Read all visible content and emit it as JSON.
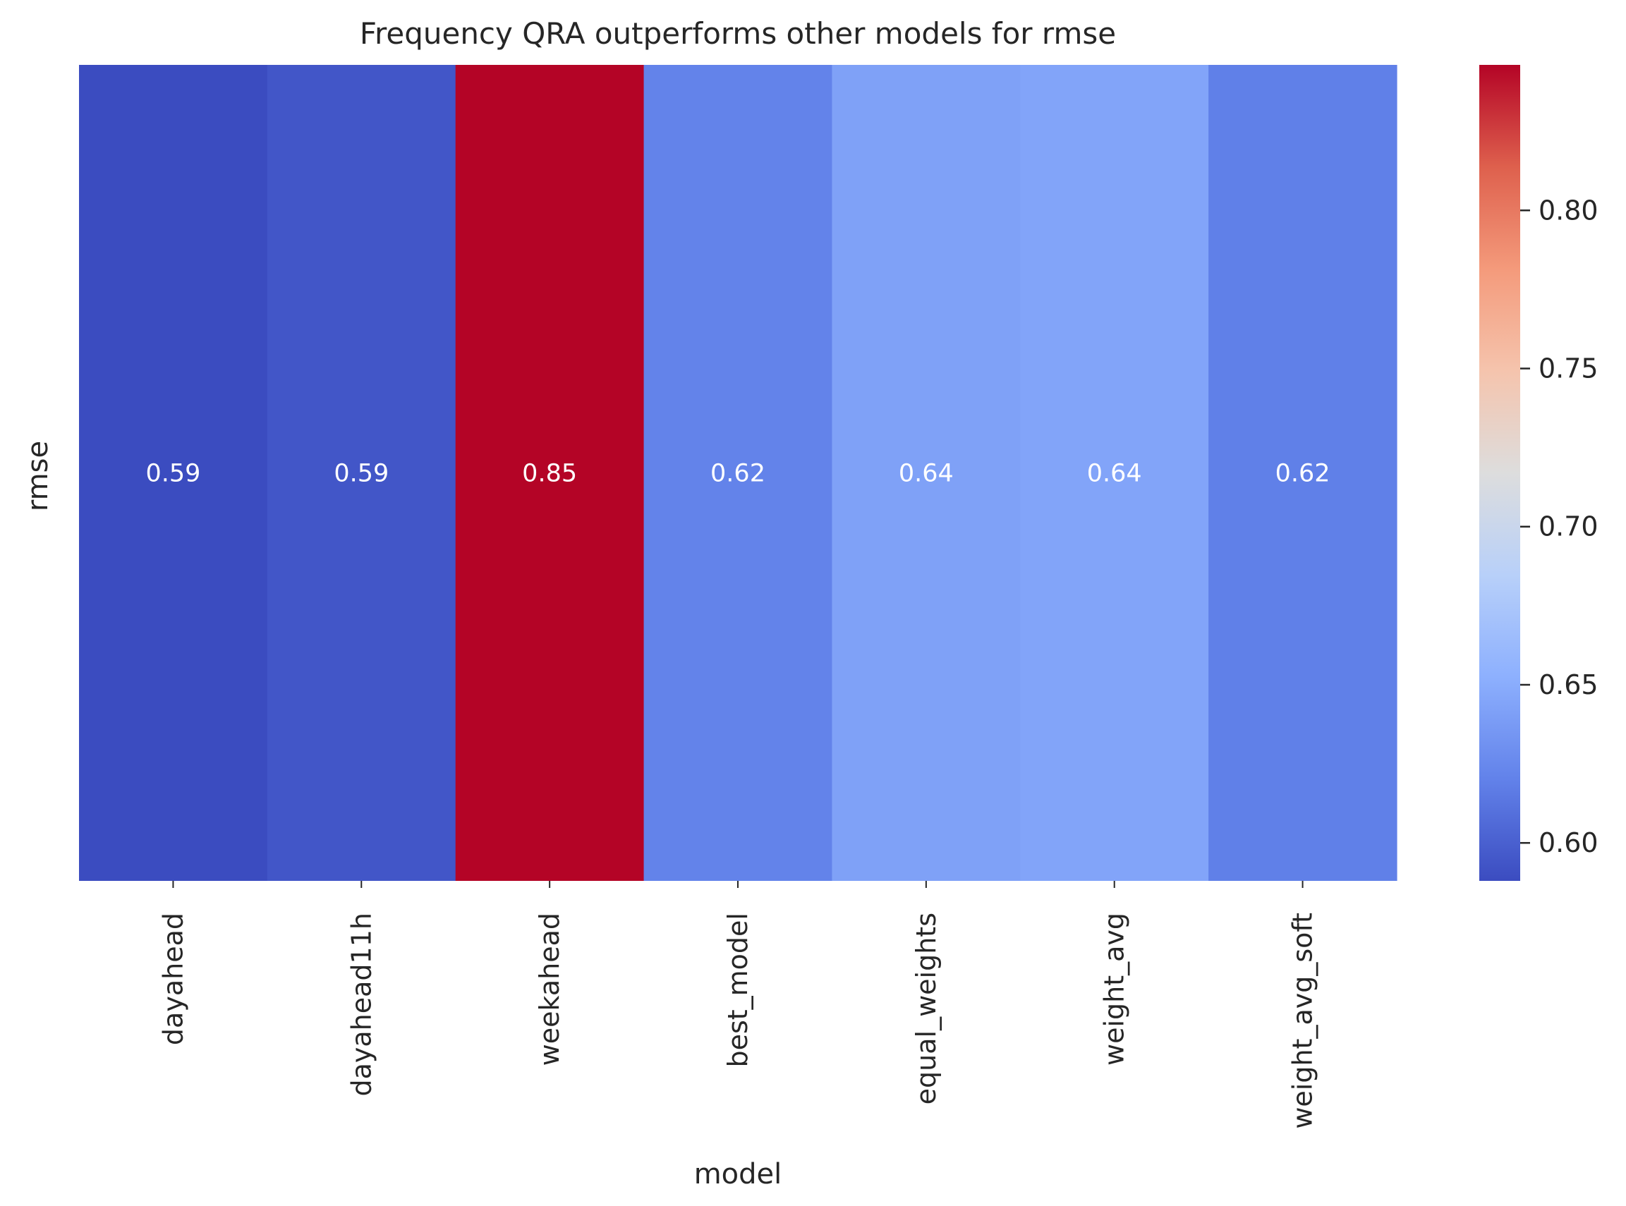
{
  "chart_data": {
    "type": "heatmap",
    "title": "Frequency QRA outperforms other models for rmse",
    "xlabel": "model",
    "ylabel": "rmse",
    "x": [
      "dayahead",
      "dayahead11h",
      "weekahead",
      "best_model",
      "equal_weights",
      "weight_avg",
      "weight_avg_soft"
    ],
    "y": [
      "rmse"
    ],
    "values": [
      [
        0.59,
        0.59,
        0.85,
        0.62,
        0.64,
        0.64,
        0.62
      ]
    ],
    "raw_values": [
      [
        0.588,
        0.594,
        0.846,
        0.621,
        0.642,
        0.644,
        0.619
      ]
    ],
    "annotation_format": "2 decimals",
    "colormap": "coolwarm",
    "colorbar": {
      "range": [
        0.588,
        0.846
      ],
      "ticks": [
        0.6,
        0.65,
        0.7,
        0.75,
        0.8
      ],
      "tick_labels": [
        "0.60",
        "0.65",
        "0.70",
        "0.75",
        "0.80"
      ]
    },
    "grid": false,
    "legend": "colorbar right"
  }
}
